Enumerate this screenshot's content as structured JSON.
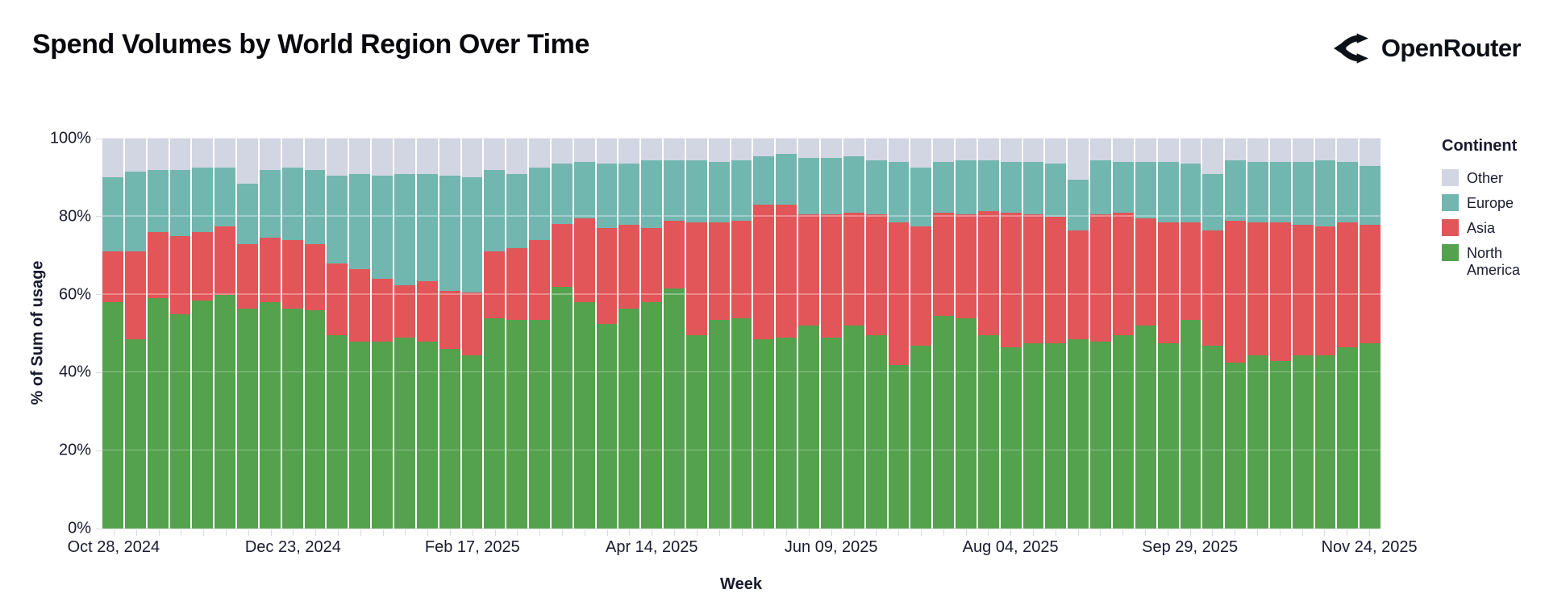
{
  "header": {
    "title": "Spend Volumes by World Region Over Time",
    "brand": "OpenRouter"
  },
  "chart_data": {
    "type": "bar",
    "stacked": true,
    "percent": true,
    "title": "Spend Volumes by World Region Over Time",
    "xlabel": "Week",
    "ylabel": "% of Sum of usage",
    "ylim": [
      0,
      100
    ],
    "grid": "horizontal",
    "y_ticks": [
      "0%",
      "20%",
      "40%",
      "60%",
      "80%",
      "100%"
    ],
    "x_tick_labels": [
      "Oct 28, 2024",
      "Dec 23, 2024",
      "Feb 17, 2025",
      "Apr 14, 2025",
      "Jun 09, 2025",
      "Aug 04, 2025",
      "Sep 29, 2025",
      "Nov 24, 2025"
    ],
    "categories": [
      "Oct 28, 2024",
      "Nov 04, 2024",
      "Nov 11, 2024",
      "Nov 18, 2024",
      "Nov 25, 2024",
      "Dec 02, 2024",
      "Dec 09, 2024",
      "Dec 16, 2024",
      "Dec 23, 2024",
      "Dec 30, 2024",
      "Jan 06, 2025",
      "Jan 13, 2025",
      "Jan 20, 2025",
      "Jan 27, 2025",
      "Feb 03, 2025",
      "Feb 10, 2025",
      "Feb 17, 2025",
      "Feb 24, 2025",
      "Mar 03, 2025",
      "Mar 10, 2025",
      "Mar 17, 2025",
      "Mar 24, 2025",
      "Mar 31, 2025",
      "Apr 07, 2025",
      "Apr 14, 2025",
      "Apr 21, 2025",
      "Apr 28, 2025",
      "May 05, 2025",
      "May 12, 2025",
      "May 19, 2025",
      "May 26, 2025",
      "Jun 02, 2025",
      "Jun 09, 2025",
      "Jun 16, 2025",
      "Jun 23, 2025",
      "Jun 30, 2025",
      "Jul 07, 2025",
      "Jul 14, 2025",
      "Jul 21, 2025",
      "Jul 28, 2025",
      "Aug 04, 2025",
      "Aug 11, 2025",
      "Aug 18, 2025",
      "Aug 25, 2025",
      "Sep 01, 2025",
      "Sep 08, 2025",
      "Sep 15, 2025",
      "Sep 22, 2025",
      "Sep 29, 2025",
      "Oct 06, 2025",
      "Oct 13, 2025",
      "Oct 20, 2025",
      "Oct 27, 2025",
      "Nov 03, 2025",
      "Nov 10, 2025",
      "Nov 17, 2025",
      "Nov 24, 2025"
    ],
    "series": [
      {
        "name": "North America",
        "color": "#54A14E",
        "values": [
          58,
          48.5,
          59,
          55,
          58.5,
          60,
          56.5,
          58,
          56.5,
          56,
          49.5,
          48,
          48,
          49,
          48,
          46,
          44.5,
          54,
          53.5,
          53.5,
          62,
          58,
          52.5,
          56.5,
          58,
          61.5,
          49.5,
          53.5,
          54,
          48.5,
          49,
          52,
          49,
          52,
          49.5,
          42,
          47,
          54.5,
          54,
          49.5,
          46.5,
          47.5,
          47.5,
          48.5,
          48,
          49.5,
          52,
          47.5,
          53.5,
          47,
          42.5,
          44.5,
          43,
          44.5,
          44.5,
          46.5,
          47.5
        ]
      },
      {
        "name": "Asia",
        "color": "#E25558",
        "values": [
          13,
          22.5,
          17,
          20,
          17.5,
          17.5,
          16.5,
          16.5,
          17.5,
          17,
          18.5,
          18.5,
          16,
          13.5,
          15.5,
          15,
          16,
          17,
          18.5,
          20.5,
          16,
          21.5,
          24.5,
          21.5,
          19,
          17.5,
          29,
          25,
          25,
          34.5,
          34,
          28.5,
          31.5,
          29,
          31,
          36.5,
          30.5,
          26.5,
          26.5,
          32,
          34.5,
          33,
          32.5,
          28,
          32.5,
          31.5,
          27.5,
          31,
          25,
          29.5,
          36.5,
          34,
          35.5,
          33.5,
          33,
          32,
          30.5
        ]
      },
      {
        "name": "Europe",
        "color": "#72B6B0",
        "values": [
          19,
          20.5,
          16,
          17,
          16.5,
          15,
          15.5,
          17.5,
          18.5,
          19,
          22.5,
          24.5,
          26.5,
          28.5,
          27.5,
          29.5,
          29.5,
          21,
          19,
          18.5,
          15.5,
          14.5,
          16.5,
          15.5,
          17.5,
          15.5,
          16,
          15.5,
          15.5,
          12.5,
          13,
          14.5,
          14.5,
          14.5,
          14,
          15.5,
          15,
          13,
          14,
          13,
          13,
          13.5,
          13.5,
          13,
          14,
          13,
          14.5,
          15.5,
          15,
          14.5,
          15.5,
          15.5,
          15.5,
          16,
          17,
          15.5,
          15
        ]
      },
      {
        "name": "Other",
        "color": "#D2D5E2",
        "values": [
          10,
          8.5,
          8,
          8,
          7.5,
          7.5,
          11.5,
          8,
          7.5,
          8,
          9.5,
          9,
          9.5,
          9,
          9,
          9.5,
          10,
          8,
          9,
          7.5,
          6.5,
          6,
          6.5,
          6.5,
          5.5,
          5.5,
          5.5,
          6,
          5.5,
          4.5,
          4,
          5,
          5,
          4.5,
          5.5,
          6,
          7.5,
          6,
          5.5,
          5.5,
          6,
          6,
          6.5,
          10.5,
          5.5,
          6,
          6,
          6,
          6.5,
          9,
          5.5,
          6,
          6,
          6,
          5.5,
          6,
          7
        ]
      }
    ],
    "legend": {
      "title": "Continent",
      "position": "right",
      "entries": [
        "Other",
        "Europe",
        "Asia",
        "North America"
      ]
    }
  }
}
